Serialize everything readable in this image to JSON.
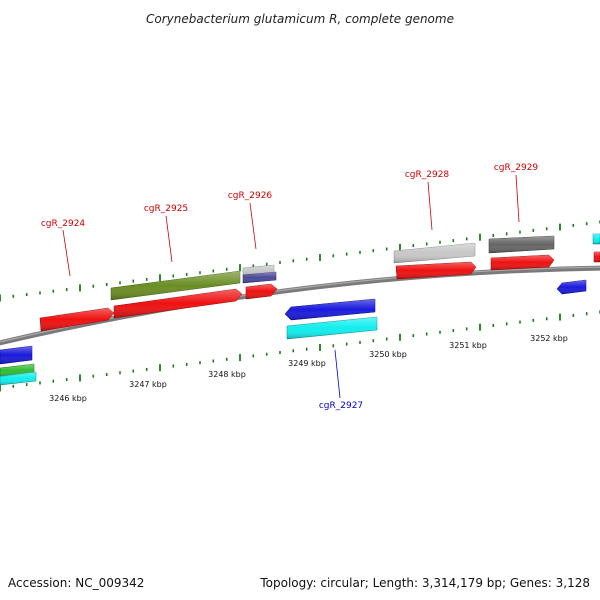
{
  "title": "Corynebacterium glutamicum R, complete genome",
  "footer": {
    "accession": "Accession: NC_009342",
    "summary": "Topology: circular; Length: 3,314,179 bp; Genes: 3,128"
  },
  "colors": {
    "tick": "#1a7a1a",
    "backbone": "#888888",
    "label_forward": "#cc0000",
    "label_reverse": "#0000cc"
  },
  "scale": {
    "unit": "kbp",
    "labels": [
      "3246 kbp",
      "3247 kbp",
      "3248 kbp",
      "3249 kbp",
      "3250 kbp",
      "3251 kbp",
      "3252 kbp"
    ]
  },
  "gene_labels": [
    {
      "name": "cgR_2924",
      "strand": "forward"
    },
    {
      "name": "cgR_2925",
      "strand": "forward"
    },
    {
      "name": "cgR_2926",
      "strand": "forward"
    },
    {
      "name": "cgR_2927",
      "strand": "reverse"
    },
    {
      "name": "cgR_2928",
      "strand": "forward"
    },
    {
      "name": "cgR_2929",
      "strand": "forward"
    }
  ],
  "feature_colors": {
    "red": "#ee1111",
    "olive": "#6b8e23",
    "light_gray": "#c8c8c8",
    "dark_gray": "#666666",
    "slate": "#4a4a99",
    "blue": "#1a1add",
    "cyan": "#11eeee",
    "green": "#33bb33"
  }
}
